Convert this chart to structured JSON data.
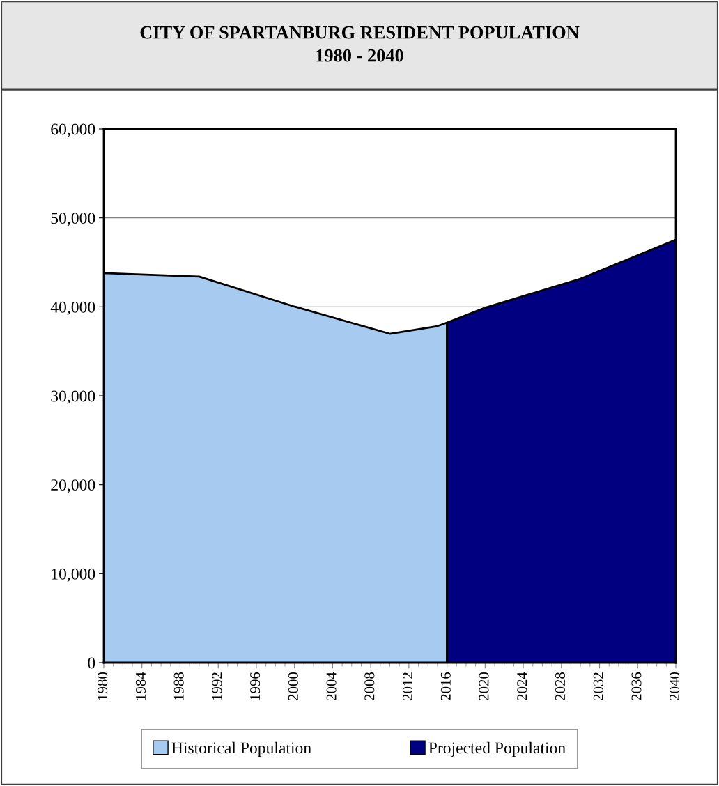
{
  "chart_data": {
    "type": "area",
    "title": "CITY OF SPARTANBURG RESIDENT POPULATION\n1980 - 2040",
    "series": [
      {
        "name": "Historical Population",
        "color": "#a6caf0",
        "x": [
          1980,
          1990,
          2000,
          2010,
          2015,
          2016
        ],
        "values": [
          43790,
          43400,
          40030,
          36970,
          37830,
          38220
        ]
      },
      {
        "name": "Projected Population",
        "color": "#000080",
        "x": [
          2016,
          2020,
          2030,
          2040
        ],
        "values": [
          38220,
          39900,
          43160,
          47550
        ]
      }
    ],
    "xlim": [
      1980,
      2040
    ],
    "xticks": [
      1980,
      1984,
      1988,
      1992,
      1996,
      2000,
      2004,
      2008,
      2012,
      2016,
      2020,
      2024,
      2028,
      2032,
      2036,
      2040
    ],
    "ylim": [
      0,
      60000
    ],
    "yticks": [
      {
        "value": 0,
        "label": "0"
      },
      {
        "value": 10000,
        "label": "10,000"
      },
      {
        "value": 20000,
        "label": "20,000"
      },
      {
        "value": 30000,
        "label": "30,000"
      },
      {
        "value": 40000,
        "label": "40,000"
      },
      {
        "value": 50000,
        "label": "50,000"
      },
      {
        "value": 60000,
        "label": "60,000"
      }
    ],
    "grid": "y",
    "legend": "bottom"
  }
}
